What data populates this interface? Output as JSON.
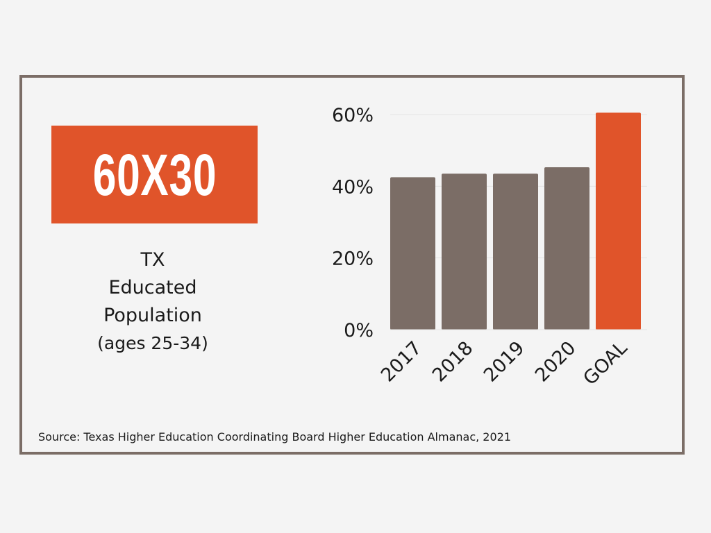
{
  "badge": {
    "label": "60X30"
  },
  "description": {
    "line1": "TX",
    "line2": "Educated",
    "line3": "Population",
    "line4": "(ages 25-34)"
  },
  "source": {
    "text": "Source: Texas Higher Education Coordinating Board Higher Education Almanac, 2021"
  },
  "colors": {
    "accent": "#e0542a",
    "bar": "#7b6d66",
    "frame": "#7b6d66",
    "background": "#f4f4f4",
    "grid": "#e3e3e3",
    "text": "#1a1a1a"
  },
  "chart_data": {
    "type": "bar",
    "categories": [
      "2017",
      "2018",
      "2019",
      "2020",
      "GOAL"
    ],
    "values": [
      42.5,
      43.5,
      43.5,
      45.3,
      60.5
    ],
    "bar_colors": [
      "#7b6d66",
      "#7b6d66",
      "#7b6d66",
      "#7b6d66",
      "#e0542a"
    ],
    "y_ticks": [
      "0%",
      "20%",
      "40%",
      "60%"
    ],
    "ylim": [
      0,
      60
    ],
    "title": "",
    "xlabel": "",
    "ylabel": "",
    "grid": true,
    "legend": "none"
  }
}
